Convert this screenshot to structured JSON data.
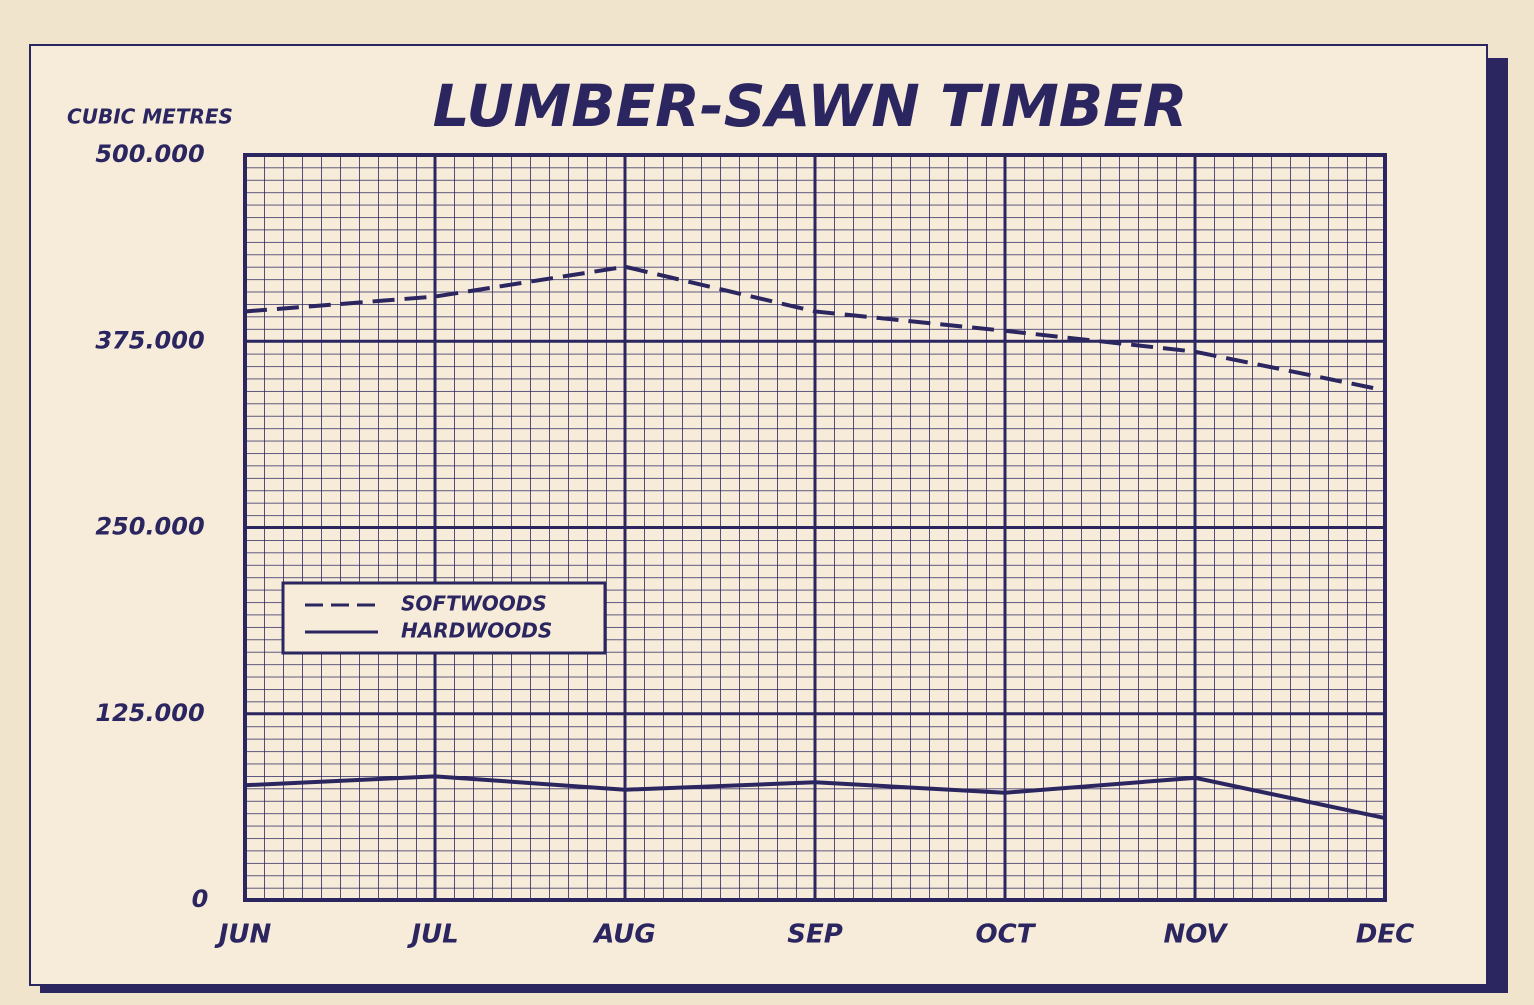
{
  "chart_data": {
    "type": "line",
    "title": "LUMBER-SAWN TIMBER",
    "y_label": "CUBIC METRES",
    "categories": [
      "JUN",
      "JUL",
      "AUG",
      "SEP",
      "OCT",
      "NOV",
      "DEC"
    ],
    "series": [
      {
        "name": "SOFTWOODS",
        "color": "#2b2660",
        "line_style": "dashed",
        "values": [
          395000,
          405000,
          425000,
          395000,
          382000,
          368000,
          342000
        ]
      },
      {
        "name": "HARDWOODS",
        "color": "#2b2660",
        "line_style": "solid",
        "values": [
          77000,
          83000,
          74000,
          79000,
          72000,
          82000,
          55000
        ]
      }
    ],
    "ylim": [
      0,
      500000
    ],
    "yticks": [
      0,
      {
        "value": 125000,
        "label": "125.000"
      },
      {
        "value": 250000,
        "label": "250.000"
      },
      {
        "value": 375000,
        "label": "375.000"
      },
      {
        "value": 500000,
        "label": "500.000"
      }
    ],
    "grid": true,
    "legend": "lower left"
  }
}
